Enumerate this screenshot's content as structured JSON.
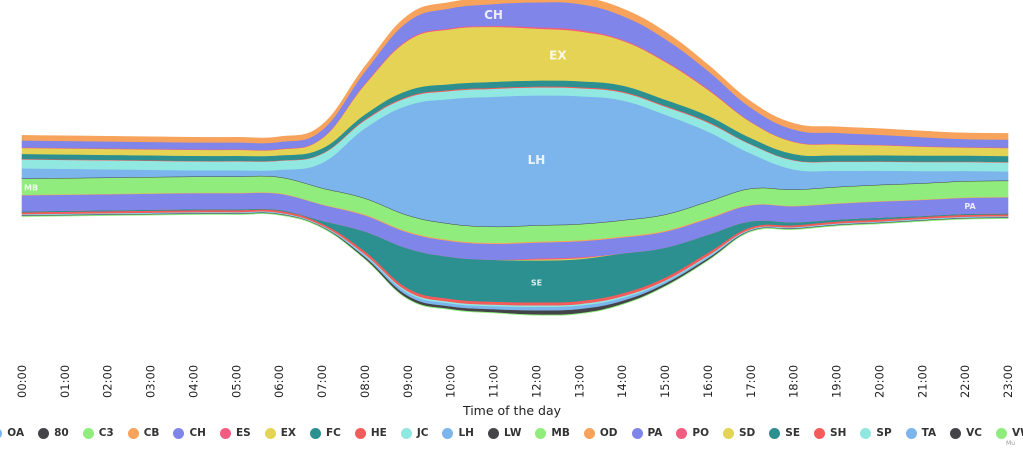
{
  "chart_data": {
    "type": "area",
    "subtype": "streamgraph",
    "title": "",
    "xlabel": "Time of the day",
    "ylabel": "",
    "x": [
      "00:00",
      "01:00",
      "02:00",
      "03:00",
      "04:00",
      "05:00",
      "06:00",
      "07:00",
      "08:00",
      "09:00",
      "10:00",
      "11:00",
      "12:00",
      "13:00",
      "14:00",
      "15:00",
      "16:00",
      "17:00",
      "18:00",
      "19:00",
      "20:00",
      "21:00",
      "22:00",
      "23:00"
    ],
    "legend_position": "bottom",
    "grid": false,
    "series": [
      {
        "name": "OA",
        "color": "#7cb5ec",
        "values": [
          0,
          0,
          0,
          0,
          0,
          0,
          0,
          0,
          0,
          0,
          0,
          0,
          0,
          0,
          0,
          0,
          0,
          0,
          0,
          0,
          0,
          0,
          0,
          0
        ]
      },
      {
        "name": "80",
        "color": "#434348",
        "values": [
          0,
          0,
          0,
          0,
          0,
          0,
          0,
          0,
          0,
          0,
          0,
          0,
          0,
          0,
          0,
          0,
          0,
          0,
          0,
          0,
          0,
          0,
          0,
          0
        ]
      },
      {
        "name": "C3",
        "color": "#90ed7d",
        "values": [
          0,
          0,
          0,
          0,
          0,
          0,
          0,
          0,
          0,
          0,
          0,
          0,
          0,
          0,
          0,
          0,
          0,
          0,
          0,
          0,
          0,
          0,
          0,
          0
        ]
      },
      {
        "name": "CB",
        "color": "#f7a35c",
        "values": [
          5,
          5,
          5,
          5,
          5,
          5,
          5,
          5,
          5,
          6,
          6,
          6,
          7,
          7,
          7,
          7,
          6,
          6,
          6,
          6,
          6,
          6,
          6,
          6
        ]
      },
      {
        "name": "CH",
        "color": "#8085e9",
        "values": [
          7,
          7,
          7,
          7,
          7,
          7,
          7,
          8,
          12,
          18,
          20,
          22,
          25,
          26,
          24,
          22,
          18,
          14,
          12,
          11,
          10,
          9,
          8,
          8
        ]
      },
      {
        "name": "ES",
        "color": "#f15c80",
        "values": [
          0.5,
          0.5,
          0.5,
          0.5,
          0.5,
          0.5,
          0.5,
          0.5,
          1,
          1,
          1,
          1,
          1.5,
          1.5,
          1,
          1,
          1,
          0.5,
          0.5,
          0.5,
          0.5,
          0.5,
          0.5,
          0.5
        ]
      },
      {
        "name": "EX",
        "color": "#e4d354",
        "values": [
          6,
          6,
          6,
          6,
          6,
          6,
          6,
          10,
          30,
          50,
          55,
          55,
          52,
          50,
          45,
          38,
          26,
          16,
          12,
          11,
          10,
          9,
          8,
          8
        ]
      },
      {
        "name": "FC",
        "color": "#2b908f",
        "values": [
          5,
          5,
          5,
          5,
          5,
          5,
          5,
          5,
          5,
          6,
          6,
          6,
          6,
          6,
          6,
          6,
          6,
          6,
          6,
          6,
          6,
          6,
          6,
          6
        ]
      },
      {
        "name": "HE",
        "color": "#f45b5b",
        "values": [
          0.5,
          0.5,
          0.5,
          0.5,
          0.5,
          0.5,
          0.5,
          0.5,
          1,
          1,
          1,
          1,
          1,
          1,
          1,
          1,
          1,
          0.5,
          0.5,
          0.5,
          0.5,
          0.5,
          0.5,
          0.5
        ]
      },
      {
        "name": "JC",
        "color": "#91e8e1",
        "values": [
          9,
          9,
          9,
          9,
          9,
          9,
          9,
          9,
          8,
          8,
          8,
          8,
          8,
          8,
          8,
          8,
          9,
          9,
          9,
          9,
          9,
          9,
          9,
          9
        ]
      },
      {
        "name": "LH",
        "color": "#7cb5ec",
        "values": [
          10,
          9,
          8,
          7,
          6,
          6,
          7,
          25,
          70,
          110,
          125,
          130,
          130,
          128,
          120,
          100,
          70,
          35,
          20,
          16,
          14,
          12,
          10,
          9
        ]
      },
      {
        "name": "LW",
        "color": "#434348",
        "values": [
          0.5,
          0.5,
          0.5,
          0.5,
          0.5,
          0.5,
          0.5,
          0.5,
          0.5,
          0.5,
          0.5,
          0.5,
          0.5,
          0.5,
          0.5,
          0.5,
          0.5,
          0.5,
          0.5,
          0.5,
          0.5,
          0.5,
          0.5,
          0.5
        ]
      },
      {
        "name": "MB",
        "color": "#90ed7d",
        "values": [
          16,
          16,
          16,
          16,
          16,
          16,
          16,
          16,
          16,
          16,
          16,
          16,
          16,
          16,
          16,
          16,
          16,
          16,
          16,
          16,
          16,
          16,
          16,
          16
        ]
      },
      {
        "name": "OD",
        "color": "#f7a35c",
        "values": [
          0.5,
          0.5,
          0.5,
          0.5,
          0.5,
          0.5,
          0.5,
          0.5,
          1,
          1,
          1,
          1,
          1,
          1,
          1,
          1,
          1,
          0.5,
          0.5,
          0.5,
          0.5,
          0.5,
          0.5,
          0.5
        ]
      },
      {
        "name": "PA",
        "color": "#8085e9",
        "values": [
          16,
          16,
          16,
          16,
          16,
          16,
          16,
          16,
          16,
          16,
          16,
          16,
          16,
          16,
          16,
          16,
          16,
          16,
          16,
          16,
          16,
          16,
          16,
          16
        ]
      },
      {
        "name": "PO",
        "color": "#f15c80",
        "values": [
          0,
          0,
          0,
          0,
          0,
          0,
          0,
          0,
          0,
          0,
          0,
          0,
          1,
          1,
          0,
          0,
          0,
          0,
          0,
          0,
          0,
          0,
          0,
          0
        ]
      },
      {
        "name": "SD",
        "color": "#e4d354",
        "values": [
          0,
          0,
          0,
          0,
          0,
          0,
          0,
          0,
          0,
          0,
          0,
          0,
          1,
          1,
          0,
          0,
          0,
          0,
          0,
          0,
          0,
          0,
          0,
          0
        ]
      },
      {
        "name": "SE",
        "color": "#2b908f",
        "values": [
          1,
          1,
          1,
          1,
          1,
          1,
          1,
          3,
          20,
          40,
          42,
          42,
          42,
          42,
          40,
          30,
          18,
          6,
          3,
          2,
          2,
          1,
          1,
          1
        ]
      },
      {
        "name": "SH",
        "color": "#f45b5b",
        "values": [
          2,
          2,
          2,
          2,
          2,
          2,
          2,
          2,
          3,
          3,
          3,
          3,
          3,
          3,
          3,
          3,
          3,
          2,
          2,
          2,
          2,
          2,
          2,
          2
        ]
      },
      {
        "name": "SP",
        "color": "#91e8e1",
        "values": [
          0.5,
          0.5,
          0.5,
          0.5,
          0.5,
          0.5,
          0.5,
          0.5,
          1,
          1.5,
          1.5,
          1.5,
          1.5,
          1.5,
          1.5,
          1,
          1,
          0.5,
          0.5,
          0.5,
          0.5,
          0.5,
          0.5,
          0.5
        ]
      },
      {
        "name": "TA",
        "color": "#7cb5ec",
        "values": [
          0.5,
          0.5,
          0.5,
          0.5,
          0.5,
          0.5,
          0.5,
          0.5,
          1.5,
          3,
          3,
          3,
          3.5,
          3.5,
          3,
          2,
          1.5,
          0.5,
          0.5,
          0.5,
          0.5,
          0.5,
          0.5,
          0.5
        ]
      },
      {
        "name": "VC",
        "color": "#434348",
        "values": [
          0.5,
          0.5,
          0.5,
          0.5,
          0.5,
          0.5,
          0.5,
          0.5,
          1.5,
          2.5,
          2.5,
          3,
          4,
          4,
          3,
          2,
          1.5,
          0.5,
          0.5,
          0.5,
          0.5,
          0.5,
          0.5,
          0.5
        ]
      },
      {
        "name": "VW",
        "color": "#90ed7d",
        "values": [
          1,
          1,
          1,
          1,
          1,
          1,
          1,
          1,
          1,
          1,
          1,
          1,
          1,
          1,
          1,
          1,
          1,
          1,
          1,
          1,
          1,
          1,
          1,
          1
        ]
      }
    ],
    "stream_labels": [
      {
        "series": "CH",
        "x": "11:00"
      },
      {
        "series": "EX",
        "x": "12:30"
      },
      {
        "series": "LH",
        "x": "12:00"
      },
      {
        "series": "SE",
        "x": "12:00"
      },
      {
        "series": "MB",
        "x": "00:00"
      },
      {
        "series": "PA",
        "x": "23:00"
      }
    ]
  },
  "credit": "Mu"
}
